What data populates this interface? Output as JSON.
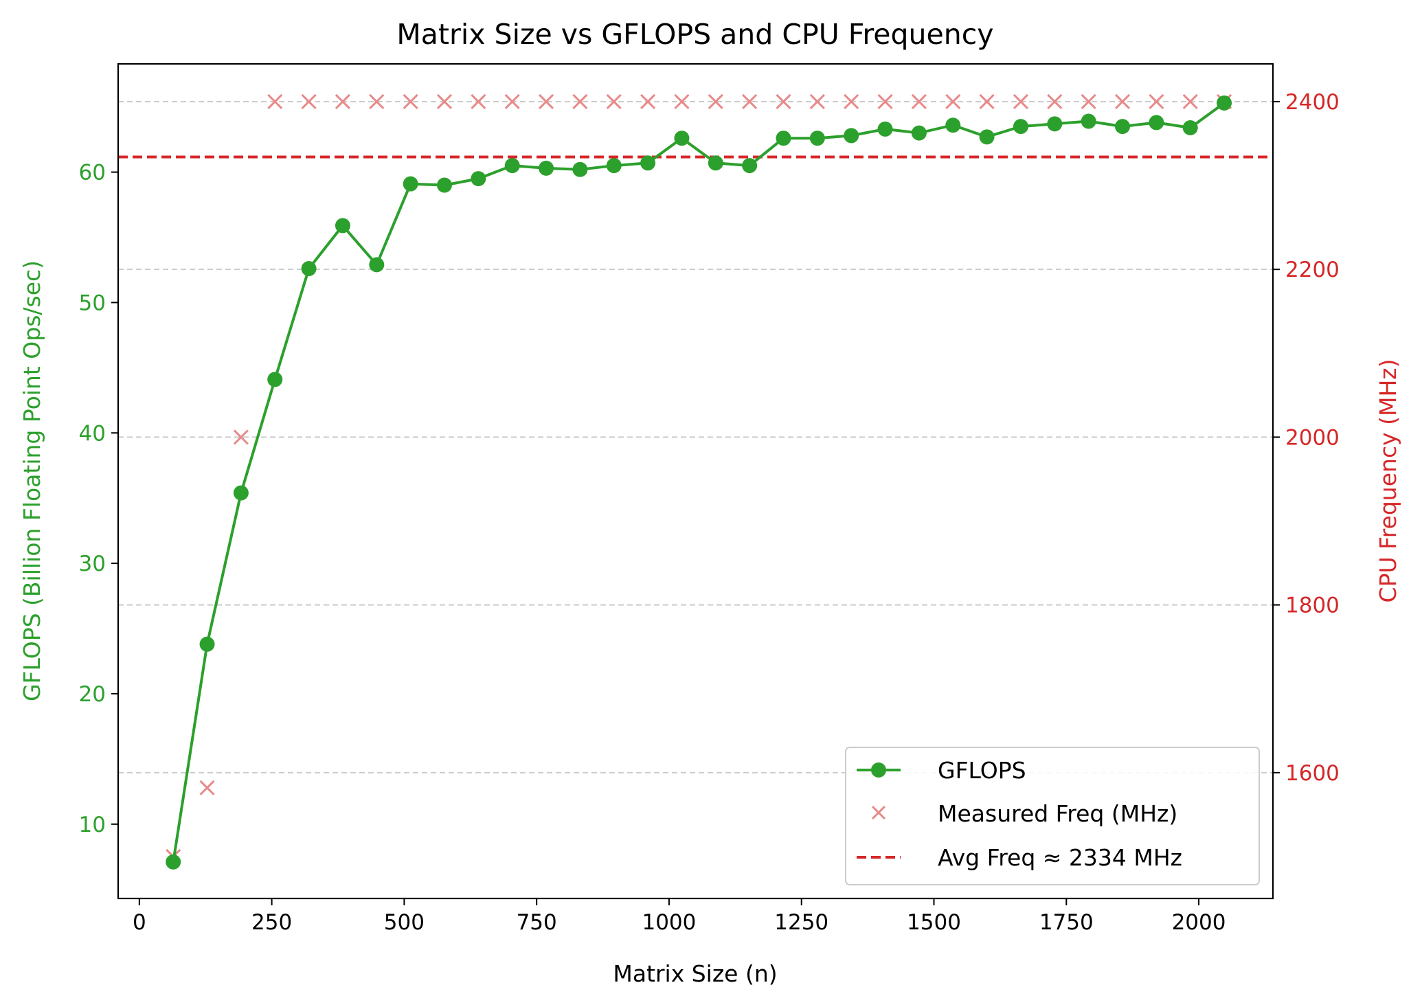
{
  "chart_data": {
    "type": "line",
    "title": "Matrix Size vs GFLOPS and CPU Frequency",
    "xlabel": "Matrix Size (n)",
    "ylabel": "GFLOPS (Billion Floating Point Ops/sec)",
    "y2label": "CPU Frequency (MHz)",
    "xlim": [
      -40,
      2140
    ],
    "ylim": [
      4.3,
      68.3
    ],
    "y2lim": [
      1450,
      2445
    ],
    "xticks": [
      0,
      250,
      500,
      750,
      1000,
      1250,
      1500,
      1750,
      2000
    ],
    "yticks": [
      10,
      20,
      30,
      40,
      50,
      60
    ],
    "y2ticks": [
      1600,
      1800,
      2000,
      2200,
      2400
    ],
    "grid": "horizontal dashed, right axis",
    "legend_position": "lower-right",
    "x": [
      64,
      128,
      192,
      256,
      320,
      384,
      448,
      512,
      576,
      640,
      704,
      768,
      832,
      896,
      960,
      1024,
      1088,
      1152,
      1216,
      1280,
      1344,
      1408,
      1472,
      1536,
      1600,
      1664,
      1728,
      1792,
      1856,
      1920,
      1984,
      2048
    ],
    "series": [
      {
        "name": "GFLOPS",
        "axis": "left",
        "color": "#2ca02c",
        "style": "line-marker-circle",
        "values": [
          7.1,
          23.8,
          35.4,
          44.1,
          52.6,
          55.9,
          52.9,
          59.1,
          59.0,
          59.5,
          60.5,
          60.3,
          60.2,
          60.5,
          60.7,
          62.6,
          60.7,
          60.5,
          62.6,
          62.6,
          62.8,
          63.3,
          63.0,
          63.6,
          62.7,
          63.5,
          63.7,
          63.9,
          63.5,
          63.8,
          63.4,
          65.3
        ]
      },
      {
        "name": "Measured Freq (MHz)",
        "axis": "right",
        "color": "#e88a8a",
        "style": "marker-x",
        "values": [
          1500,
          1582,
          2000,
          2400,
          2400,
          2400,
          2400,
          2400,
          2400,
          2400,
          2400,
          2400,
          2400,
          2400,
          2400,
          2400,
          2400,
          2400,
          2400,
          2400,
          2400,
          2400,
          2400,
          2400,
          2400,
          2400,
          2400,
          2400,
          2400,
          2400,
          2400,
          2400
        ]
      },
      {
        "name": "Avg Freq ≈ 2334 MHz",
        "axis": "right",
        "color": "#d62728",
        "style": "dashed-hline",
        "value": 2334
      }
    ]
  }
}
